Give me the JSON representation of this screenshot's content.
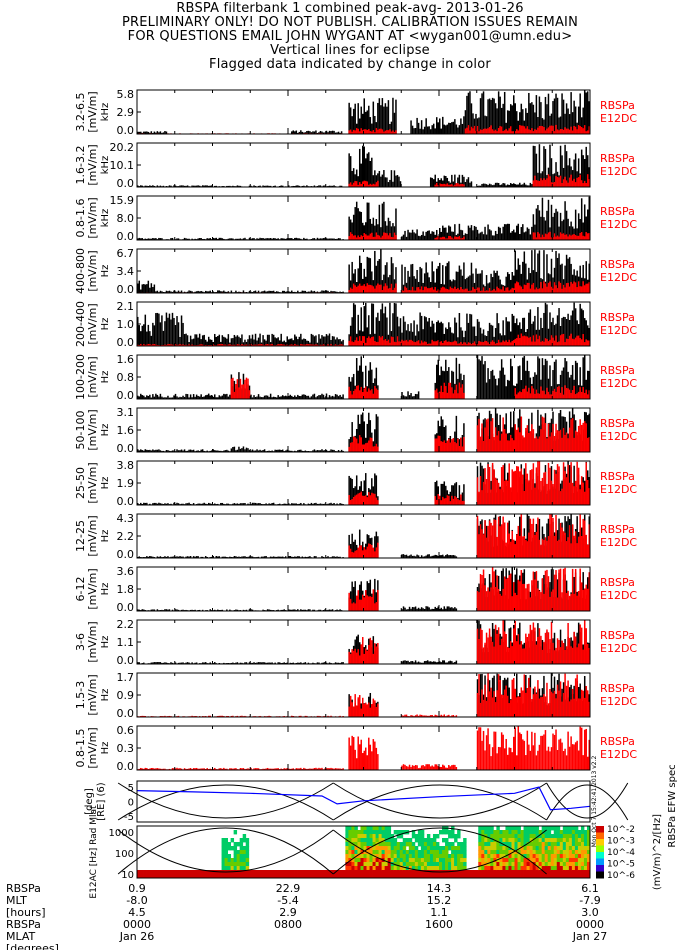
{
  "header": {
    "line1": "RBSPA filterbank 1 combined peak-avg- 2013-01-26",
    "line2": "PRELIMINARY ONLY! DO NOT PUBLISH. CALIBRATION ISSUES REMAIN",
    "line3": "FOR QUESTIONS EMAIL JOHN WYGANT AT <wygan001@umn.edu>",
    "line4": "Vertical lines for eclipse",
    "line5": "Flagged data indicated by change in color"
  },
  "colors": {
    "peak": "#000000",
    "avg": "#ff0000",
    "label_red": "#ff0000",
    "orbit_curve": "#0000ff"
  },
  "chart_data": [
    {
      "type": "bar",
      "title": "RBSPA filterbank 1 combined peak-avg- 2013-01-26",
      "xlabel": "",
      "x_range_hours": [
        0,
        24
      ],
      "panels": [
        {
          "band": "3.2-6.5",
          "unit": "kHz",
          "ylabel": "[mV/m]",
          "ticks": [
            "5.8",
            "2.9",
            "0.0"
          ],
          "ymax": 5.8,
          "peak_levels": [
            [
              0,
              1.6,
              0.4
            ],
            [
              8.2,
              10.9,
              0.5
            ],
            [
              11.2,
              13.8,
              4.8
            ],
            [
              14.5,
              17.4,
              2.4
            ],
            [
              17.4,
              20,
              5.8
            ],
            [
              20,
              24,
              5.8
            ]
          ],
          "avg_levels": [
            [
              0,
              11,
              0.1
            ],
            [
              11.2,
              13.8,
              0.8
            ],
            [
              17.4,
              24,
              1.2
            ]
          ]
        },
        {
          "band": "1.6-3.2",
          "unit": "kHz",
          "ylabel": "[mV/m]",
          "ticks": [
            "20.2",
            "10.1",
            "0.0"
          ],
          "ymax": 20.2,
          "peak_levels": [
            [
              0,
              11,
              0.8
            ],
            [
              11.2,
              12.5,
              19
            ],
            [
              12.5,
              14,
              8
            ],
            [
              15.5,
              17.8,
              6
            ],
            [
              18,
              21,
              2
            ],
            [
              21,
              24,
              20.2
            ]
          ],
          "avg_levels": [
            [
              0,
              11,
              0.2
            ],
            [
              11.2,
              12.8,
              3
            ],
            [
              15.8,
              17.4,
              2
            ],
            [
              21,
              24,
              6
            ]
          ]
        },
        {
          "band": "0.8-1.6",
          "unit": "kHz",
          "ylabel": "[mV/m]",
          "ticks": [
            "15.9",
            "8.0",
            "0.0"
          ],
          "ymax": 15.9,
          "peak_levels": [
            [
              0,
              11,
              0.8
            ],
            [
              11.2,
              13.8,
              14
            ],
            [
              14,
              16,
              4
            ],
            [
              16,
              18,
              6
            ],
            [
              18,
              21,
              6
            ],
            [
              21,
              24,
              15.9
            ]
          ],
          "avg_levels": [
            [
              0,
              11,
              0.2
            ],
            [
              11.2,
              13.8,
              3
            ],
            [
              15.8,
              17.4,
              1.5
            ],
            [
              21,
              24,
              3
            ]
          ]
        },
        {
          "band": "400-800",
          "unit": "Hz",
          "ylabel": "[mV/m]",
          "ticks": [
            "6.7",
            "3.4",
            "0.0"
          ],
          "ymax": 6.7,
          "peak_levels": [
            [
              0,
              1,
              2
            ],
            [
              1,
              11,
              0.4
            ],
            [
              11.2,
              13.8,
              6.7
            ],
            [
              14,
              18,
              5
            ],
            [
              18,
              20,
              3.5
            ],
            [
              20,
              24,
              6.7
            ]
          ],
          "avg_levels": [
            [
              0,
              11,
              0.1
            ],
            [
              11.2,
              13.8,
              1.5
            ],
            [
              14,
              20,
              1
            ],
            [
              20,
              24,
              1.8
            ]
          ]
        },
        {
          "band": "200-400",
          "unit": "Hz",
          "ylabel": "[mV/m]",
          "ticks": [
            "2.1",
            "1.0",
            "0.0"
          ],
          "ymax": 2.1,
          "peak_levels": [
            [
              0,
              2.5,
              1.6
            ],
            [
              2.5,
              11,
              0.6
            ],
            [
              11.2,
              14,
              2.1
            ],
            [
              14,
              20,
              1.6
            ],
            [
              20,
              24,
              2.1
            ]
          ],
          "avg_levels": [
            [
              0,
              11,
              0.1
            ],
            [
              11.2,
              14,
              0.5
            ],
            [
              14,
              20,
              0.3
            ],
            [
              20,
              24,
              0.6
            ]
          ]
        },
        {
          "band": "100-200",
          "unit": "Hz",
          "ylabel": "[mV/m]",
          "ticks": [
            "1.6",
            "0.8",
            "0.0"
          ],
          "ymax": 1.6,
          "peak_levels": [
            [
              0,
              5,
              0.2
            ],
            [
              5,
              6,
              1.0
            ],
            [
              6,
              11,
              0.2
            ],
            [
              11.2,
              12.8,
              1.6
            ],
            [
              14,
              15,
              0.3
            ],
            [
              15.8,
              17.4,
              1.5
            ],
            [
              18,
              24,
              1.6
            ]
          ],
          "avg_levels": [
            [
              5,
              6,
              0.8
            ],
            [
              11.2,
              12.8,
              0.5
            ],
            [
              15.8,
              17.4,
              0.6
            ],
            [
              20,
              24,
              0.5
            ]
          ]
        },
        {
          "band": "50-100",
          "unit": "Hz",
          "ylabel": "[mV/m]",
          "ticks": [
            "3.1",
            "1.6",
            "0.0"
          ],
          "ymax": 3.1,
          "peak_levels": [
            [
              0,
              5,
              0.2
            ],
            [
              5,
              6,
              0.4
            ],
            [
              6,
              11,
              0.2
            ],
            [
              11.2,
              12.8,
              2.8
            ],
            [
              15.8,
              17.4,
              2.6
            ],
            [
              18,
              24,
              3.1
            ]
          ],
          "avg_levels": [
            [
              11.2,
              12.8,
              1.2
            ],
            [
              15.8,
              17.4,
              1.2
            ],
            [
              18,
              24,
              2.5
            ]
          ]
        },
        {
          "band": "25-50",
          "unit": "Hz",
          "ylabel": "[mV/m]",
          "ticks": [
            "3.8",
            "1.9",
            "0.0"
          ],
          "ymax": 3.8,
          "peak_levels": [
            [
              0,
              11,
              0.2
            ],
            [
              11.2,
              12.8,
              2.8
            ],
            [
              15.8,
              17.4,
              2.2
            ],
            [
              18,
              24,
              3.8
            ]
          ],
          "avg_levels": [
            [
              11.2,
              12.8,
              1.2
            ],
            [
              15.8,
              17.4,
              1.0
            ],
            [
              18,
              24,
              3.8
            ]
          ]
        },
        {
          "band": "12-25",
          "unit": "Hz",
          "ylabel": "[mV/m]",
          "ticks": [
            "4.3",
            "2.2",
            "0.0"
          ],
          "ymax": 4.3,
          "peak_levels": [
            [
              0,
              11,
              0.2
            ],
            [
              11.2,
              12.8,
              2.8
            ],
            [
              14,
              17,
              0.4
            ],
            [
              18,
              24,
              4.3
            ]
          ],
          "avg_levels": [
            [
              11.2,
              12.8,
              1.6
            ],
            [
              18,
              24,
              4.3
            ]
          ]
        },
        {
          "band": "6-12",
          "unit": "Hz",
          "ylabel": "[mV/m]",
          "ticks": [
            "3.6",
            "1.8",
            "0.0"
          ],
          "ymax": 3.6,
          "peak_levels": [
            [
              0,
              11,
              0.15
            ],
            [
              11.2,
              12.8,
              2.8
            ],
            [
              14,
              17,
              0.4
            ],
            [
              18,
              24,
              3.6
            ]
          ],
          "avg_levels": [
            [
              11.2,
              12.8,
              1.8
            ],
            [
              18,
              24,
              3.6
            ]
          ]
        },
        {
          "band": "3-6",
          "unit": "Hz",
          "ylabel": "[mV/m]",
          "ticks": [
            "2.2",
            "1.1",
            "0.0"
          ],
          "ymax": 2.2,
          "peak_levels": [
            [
              0,
              11,
              0.1
            ],
            [
              11.2,
              12.8,
              1.6
            ],
            [
              14,
              17,
              0.2
            ],
            [
              18,
              24,
              2.2
            ]
          ],
          "avg_levels": [
            [
              11.2,
              12.8,
              1.4
            ],
            [
              18,
              24,
              2.2
            ]
          ]
        },
        {
          "band": "1.5-3",
          "unit": "Hz",
          "ylabel": "[mV/m]",
          "ticks": [
            "1.7",
            "0.9",
            "0.0"
          ],
          "ymax": 1.7,
          "peak_levels": [
            [
              11.2,
              12.8,
              1.0
            ],
            [
              18,
              24,
              1.7
            ]
          ],
          "avg_levels": [
            [
              0,
              11,
              0.05
            ],
            [
              11.2,
              12.8,
              1.0
            ],
            [
              14,
              17,
              0.1
            ],
            [
              18,
              24,
              1.7
            ]
          ]
        },
        {
          "band": "0.8-1.5",
          "unit": "Hz",
          "ylabel": "[mV/m]",
          "ticks": [
            "0.6",
            "0.3",
            "0.0"
          ],
          "ymax": 0.6,
          "peak_levels": [],
          "avg_levels": [
            [
              0,
              11,
              0.03
            ],
            [
              11.2,
              12.8,
              0.5
            ],
            [
              14,
              17,
              0.08
            ],
            [
              18,
              24,
              0.6
            ]
          ]
        }
      ],
      "panel_side_label": [
        "RBSPa",
        "E12DC"
      ]
    },
    {
      "type": "line",
      "ylabel": "[RE] (6)",
      "ylabel_extra": "[deg]",
      "ticks": [
        "5",
        "0",
        "-5"
      ],
      "series": [
        {
          "name": "",
          "x": [
            0,
            3,
            6,
            9.8,
            10.6,
            12,
            16,
            20,
            21.3,
            21.9,
            23,
            24
          ],
          "y": [
            3.2,
            2.8,
            2.4,
            1.6,
            -0.7,
            0.2,
            1.4,
            2.4,
            4.2,
            -2.4,
            -2.0,
            -1.4
          ]
        }
      ],
      "side_text": "Mon Oct 7 15:42:41 2013 v2.2"
    },
    {
      "type": "heatmap",
      "ylabel": "E12AC [Hz] Rad Mlat",
      "ticks": [
        "1000",
        "100",
        "10"
      ],
      "yscale": "log",
      "colorbar_ticks": [
        "10^-2",
        "10^-3",
        "10^-4",
        "10^-5",
        "10^-6"
      ],
      "colorbar_label": "(mV/m)^2/[Hz]",
      "colorbar_title": "RBSPa EFW spec"
    }
  ],
  "axis_table": {
    "row_labels": [
      "RBSPa",
      "MLT",
      "[hours]",
      "RBSPa",
      "MLAT",
      "[degrees]"
    ],
    "columns": [
      {
        "v1": "0.9",
        "v2": "-8.0",
        "v3": "4.5",
        "time": "0000",
        "date": "Jan 26"
      },
      {
        "v1": "22.9",
        "v2": "-5.4",
        "v3": "2.9",
        "time": "0800",
        "date": ""
      },
      {
        "v1": "14.3",
        "v2": "15.2",
        "v3": "1.1",
        "time": "1600",
        "date": ""
      },
      {
        "v1": "6.1",
        "v2": "-7.9",
        "v3": "3.0",
        "time": "0000",
        "date": "Jan 27"
      }
    ]
  }
}
